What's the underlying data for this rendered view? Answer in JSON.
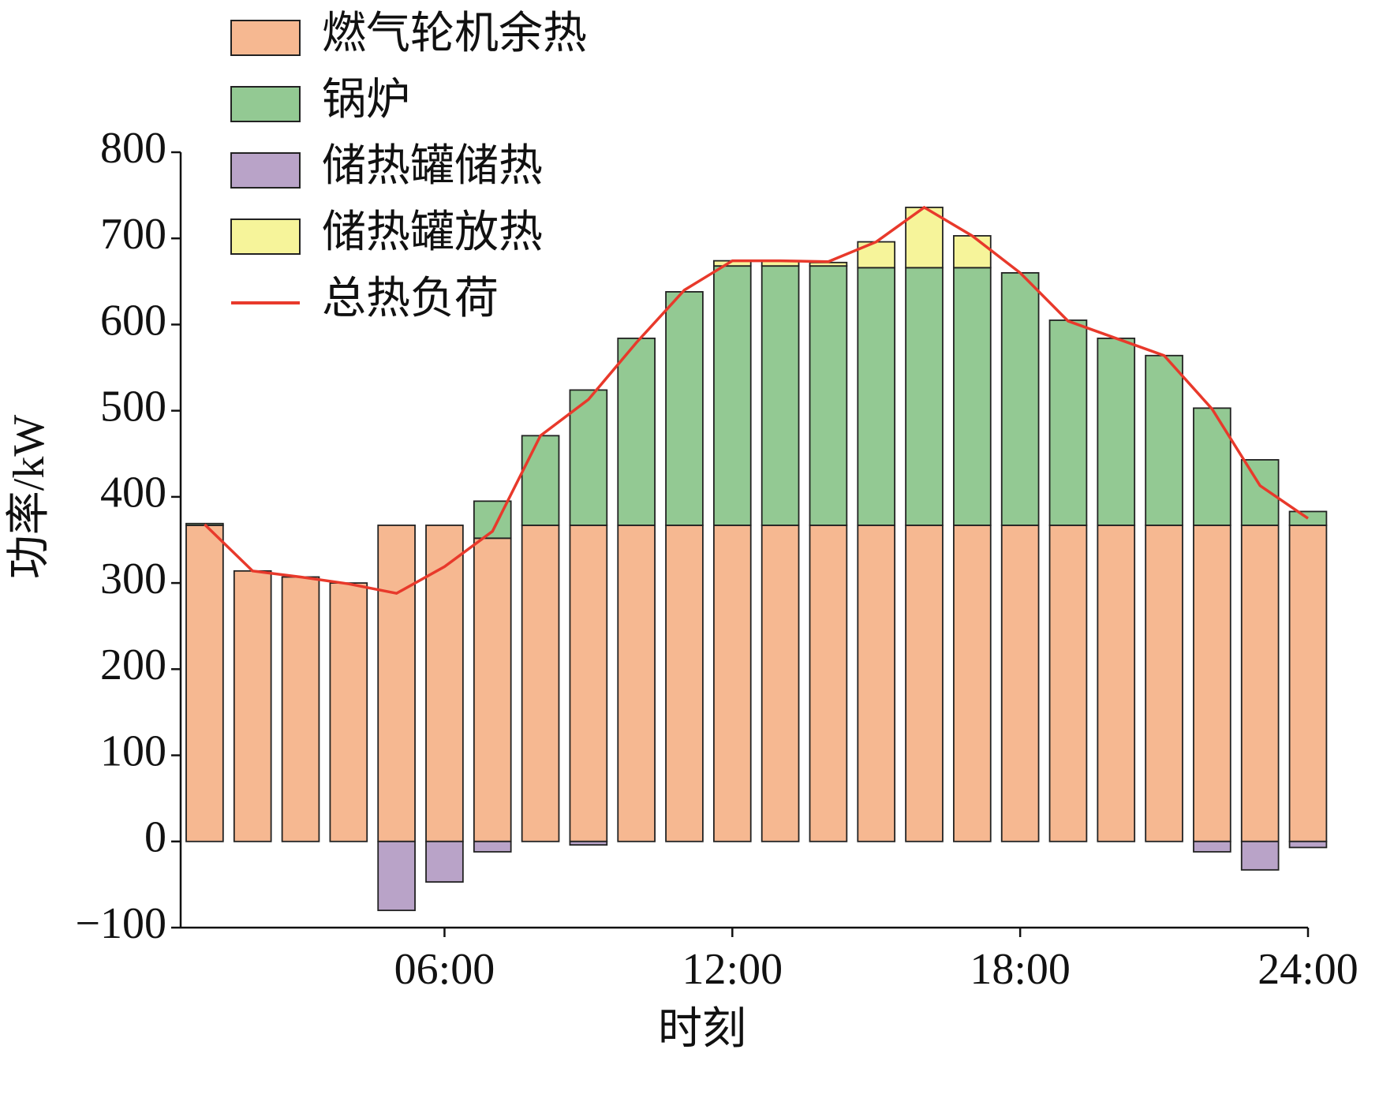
{
  "chart_data": {
    "type": "bar",
    "x": [
      1,
      2,
      3,
      4,
      5,
      6,
      7,
      8,
      9,
      10,
      11,
      12,
      13,
      14,
      15,
      16,
      17,
      18,
      19,
      20,
      21,
      22,
      23,
      24
    ],
    "series": [
      {
        "name": "燃气轮机余热",
        "color": "#f6b891",
        "values": [
          367,
          314,
          307,
          300,
          367,
          367,
          352,
          367,
          367,
          367,
          367,
          367,
          367,
          367,
          367,
          367,
          367,
          367,
          367,
          367,
          367,
          367,
          367,
          367
        ]
      },
      {
        "name": "锅炉",
        "color": "#93c993",
        "values": [
          2,
          0,
          0,
          0,
          0,
          0,
          43,
          104,
          157,
          217,
          271,
          301,
          301,
          301,
          299,
          299,
          299,
          293,
          238,
          217,
          197,
          136,
          76,
          16
        ]
      },
      {
        "name": "储热罐储热",
        "color": "#b9a3c8",
        "values": [
          0,
          0,
          0,
          0,
          -80,
          -47,
          -12,
          0,
          -4,
          0,
          0,
          0,
          0,
          0,
          0,
          0,
          0,
          0,
          0,
          0,
          0,
          -12,
          -33,
          -7
        ]
      },
      {
        "name": "储热罐放热",
        "color": "#f6f49a",
        "values": [
          0,
          0,
          0,
          0,
          0,
          0,
          0,
          0,
          0,
          0,
          0,
          6,
          6,
          4,
          30,
          70,
          37,
          0,
          0,
          0,
          0,
          0,
          0,
          0
        ]
      },
      {
        "name": "总热负荷",
        "color": "#e8392b",
        "type": "line",
        "values": [
          368,
          314,
          307,
          299,
          288,
          319,
          360,
          471,
          513,
          579,
          640,
          674,
          674,
          673,
          696,
          736,
          703,
          660,
          604,
          584,
          564,
          502,
          413,
          375
        ]
      }
    ],
    "xlabel": "时刻",
    "ylabel": "功率/kW",
    "xlim": [
      0.5,
      24
    ],
    "xticks": [
      {
        "value": 6,
        "label": "06:00"
      },
      {
        "value": 12,
        "label": "12:00"
      },
      {
        "value": 18,
        "label": "18:00"
      },
      {
        "value": 24,
        "label": "24:00"
      }
    ],
    "ylim": [
      -100,
      800
    ],
    "yticks": [
      {
        "value": -100,
        "label": "−100"
      },
      0,
      100,
      200,
      300,
      400,
      500,
      600,
      700,
      800
    ]
  }
}
